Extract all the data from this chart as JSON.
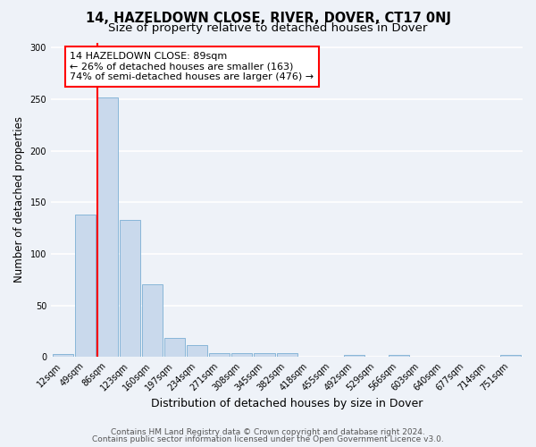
{
  "title": "14, HAZELDOWN CLOSE, RIVER, DOVER, CT17 0NJ",
  "subtitle": "Size of property relative to detached houses in Dover",
  "xlabel": "Distribution of detached houses by size in Dover",
  "ylabel": "Number of detached properties",
  "bin_labels": [
    "12sqm",
    "49sqm",
    "86sqm",
    "123sqm",
    "160sqm",
    "197sqm",
    "234sqm",
    "271sqm",
    "308sqm",
    "345sqm",
    "382sqm",
    "418sqm",
    "455sqm",
    "492sqm",
    "529sqm",
    "566sqm",
    "603sqm",
    "640sqm",
    "677sqm",
    "714sqm",
    "751sqm"
  ],
  "bar_values": [
    3,
    138,
    252,
    133,
    70,
    18,
    11,
    4,
    4,
    4,
    4,
    0,
    0,
    2,
    0,
    2,
    0,
    0,
    0,
    0,
    2
  ],
  "bar_color": "#c9d9ec",
  "bar_edge_color": "#7bafd4",
  "vline_color": "red",
  "vline_bar_index": 2,
  "annotation_title": "14 HAZELDOWN CLOSE: 89sqm",
  "annotation_line1": "← 26% of detached houses are smaller (163)",
  "annotation_line2": "74% of semi-detached houses are larger (476) →",
  "annotation_box_color": "white",
  "annotation_box_edge": "red",
  "ylim": [
    0,
    305
  ],
  "yticks": [
    0,
    50,
    100,
    150,
    200,
    250,
    300
  ],
  "footer_line1": "Contains HM Land Registry data © Crown copyright and database right 2024.",
  "footer_line2": "Contains public sector information licensed under the Open Government Licence v3.0.",
  "background_color": "#eef2f8",
  "grid_color": "#ffffff",
  "title_fontsize": 10.5,
  "subtitle_fontsize": 9.5,
  "xlabel_fontsize": 9,
  "ylabel_fontsize": 8.5,
  "tick_fontsize": 7,
  "annot_fontsize": 8,
  "footer_fontsize": 6.5
}
